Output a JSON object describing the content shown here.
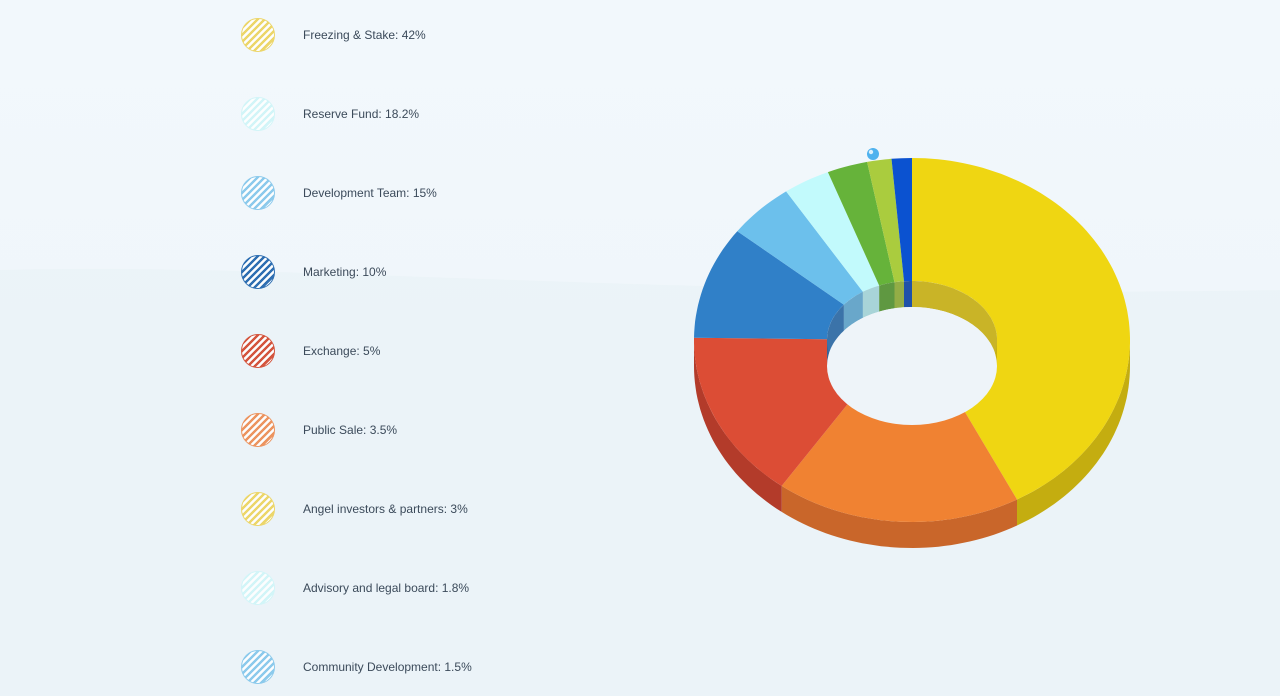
{
  "chart_data": {
    "type": "pie",
    "variant": "3d-donut",
    "series": [
      {
        "label": "Freezing & Stake: 42%",
        "value": 42,
        "color": "#efd612",
        "side": "#c4ad10"
      },
      {
        "label": "Reserve Fund: 18.2%",
        "value": 18.2,
        "color": "#f08232",
        "side": "#c9662a"
      },
      {
        "label": "Development Team: 15%",
        "value": 15,
        "color": "#dc4d35",
        "side": "#b33b2a"
      },
      {
        "label": "Marketing: 10%",
        "value": 10,
        "color": "#3080c8",
        "side": "#2765a0"
      },
      {
        "label": "Exchange: 5%",
        "value": 5,
        "color": "#6cc0ec",
        "side": "#5a9fc4"
      },
      {
        "label": "Public Sale: 3.5%",
        "value": 3.5,
        "color": "#c2fafc",
        "side": "#a0d0d4"
      },
      {
        "label": "Angel investors & partners: 3%",
        "value": 3,
        "color": "#66b33a",
        "side": "#4f8e2c"
      },
      {
        "label": "Advisory and legal board: 1.8%",
        "value": 1.8,
        "color": "#aacc3e",
        "side": "#88a532"
      },
      {
        "label": "Community Development: 1.5%",
        "value": 1.5,
        "color": "#0b52d0",
        "side": "#083fa0"
      }
    ],
    "legend": {
      "placement": "left",
      "items": [
        {
          "text": "Freezing & Stake: 42%",
          "color": "#ecd66a"
        },
        {
          "text": "Reserve Fund: 18.2%",
          "color": "#d2f5f8"
        },
        {
          "text": "Development Team: 15%",
          "color": "#8ccaec"
        },
        {
          "text": "Marketing: 10%",
          "color": "#2f6fb2"
        },
        {
          "text": "Exchange: 5%",
          "color": "#d4553e"
        },
        {
          "text": "Public Sale: 3.5%",
          "color": "#ec9460"
        },
        {
          "text": "Angel investors & partners: 3%",
          "color": "#ecd66a"
        },
        {
          "text": "Advisory and legal board: 1.8%",
          "color": "#d2f5f8"
        },
        {
          "text": "Community Development: 1.5%",
          "color": "#8ccaec"
        }
      ]
    },
    "marker_color": "#4fb2ee"
  }
}
